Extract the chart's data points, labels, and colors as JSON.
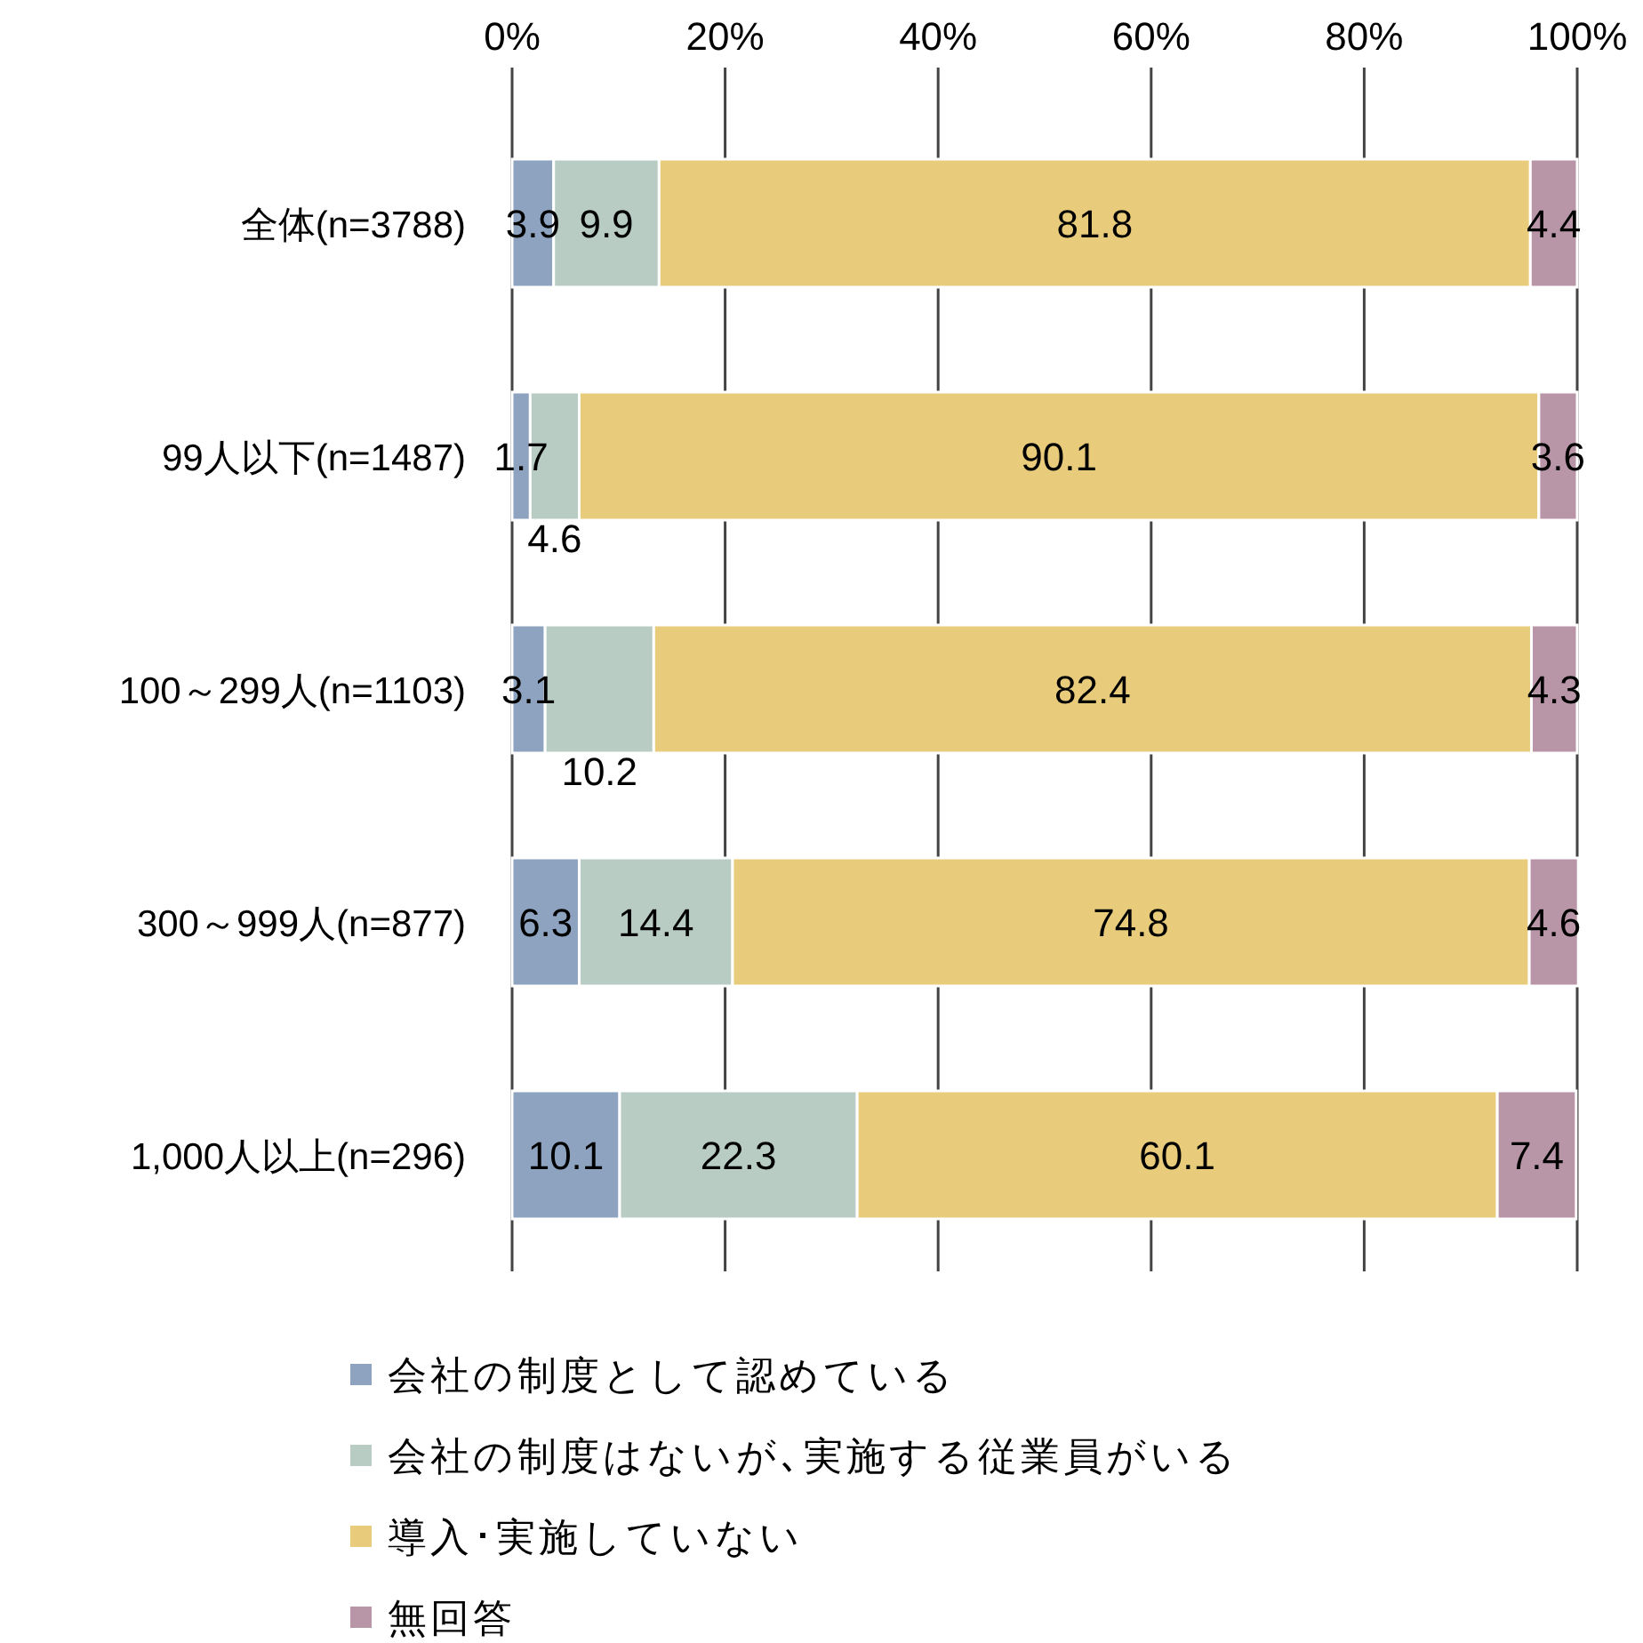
{
  "chart_data": {
    "type": "bar",
    "orientation": "horizontal",
    "stacked": true,
    "data_labels": true,
    "grid": "x",
    "legend": "bottom",
    "categories": [
      "全体(n=3788)",
      "99人以下(n=1487)",
      "100～299人(n=1103)",
      "300～999人(n=877)",
      "1,000人以上(n=296)"
    ],
    "xlim": [
      0,
      100
    ],
    "xticks": [
      {
        "value": 0,
        "label": "0%"
      },
      {
        "value": 20,
        "label": "20%"
      },
      {
        "value": 40,
        "label": "40%"
      },
      {
        "value": 60,
        "label": "60%"
      },
      {
        "value": 80,
        "label": "80%"
      },
      {
        "value": 100,
        "label": "100%"
      }
    ],
    "series": [
      {
        "name": "会社の制度として認めている",
        "color": "#8da3c0",
        "values": [
          3.9,
          1.7,
          3.1,
          6.3,
          10.1
        ]
      },
      {
        "name": "会社の制度はないが､実施する従業員がいる",
        "color": "#b8ccc4",
        "values": [
          9.9,
          4.6,
          10.2,
          14.4,
          22.3
        ]
      },
      {
        "name": "導入･実施していない",
        "color": "#e8cc7c",
        "values": [
          81.8,
          90.1,
          82.4,
          74.8,
          60.1
        ]
      },
      {
        "name": "無回答",
        "color": "#b896a8",
        "values": [
          4.4,
          3.6,
          4.3,
          4.6,
          7.4
        ]
      }
    ]
  }
}
